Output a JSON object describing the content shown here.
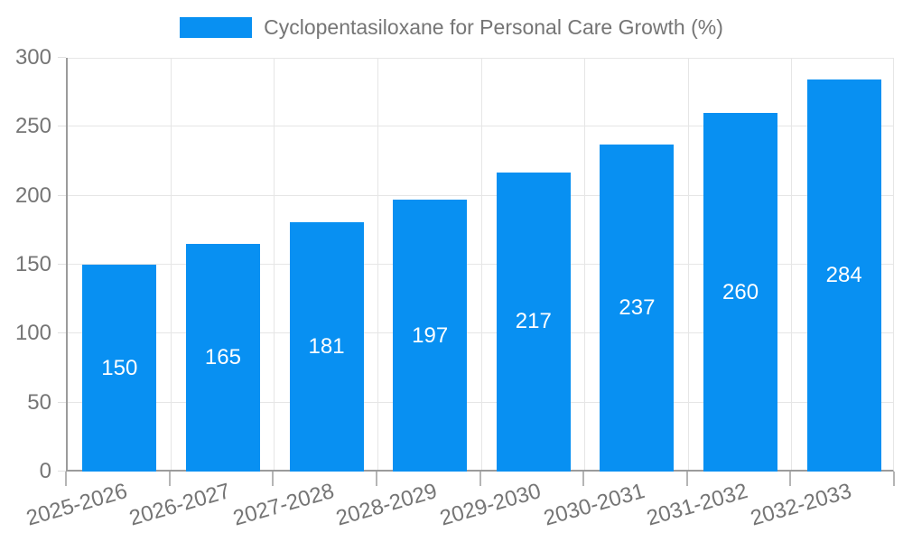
{
  "legend": {
    "label": "Cyclopentasiloxane for Personal Care Growth (%)"
  },
  "chart_data": {
    "type": "bar",
    "title": "",
    "xlabel": "",
    "ylabel": "",
    "categories": [
      "2025-2026",
      "2026-2027",
      "2027-2028",
      "2028-2029",
      "2029-2030",
      "2030-2031",
      "2031-2032",
      "2032-2033"
    ],
    "series": [
      {
        "name": "Cyclopentasiloxane for Personal Care Growth (%)",
        "values": [
          150,
          165,
          181,
          197,
          217,
          237,
          260,
          284
        ]
      }
    ],
    "value_labels_shown": true,
    "ylim": [
      0,
      300
    ],
    "ytick_step": 50,
    "ytick_labels": [
      "0",
      "50",
      "100",
      "150",
      "200",
      "250",
      "300"
    ],
    "grid": "on",
    "legend_position": "top-center",
    "x_label_rotation_deg": -16
  },
  "colors": {
    "bar": "#0890F2",
    "value_label": "#ffffff",
    "axis_line": "#9b9b9b",
    "gridline": "#e6e6e6",
    "tick": "#b5b5b5",
    "text": "#757575"
  }
}
